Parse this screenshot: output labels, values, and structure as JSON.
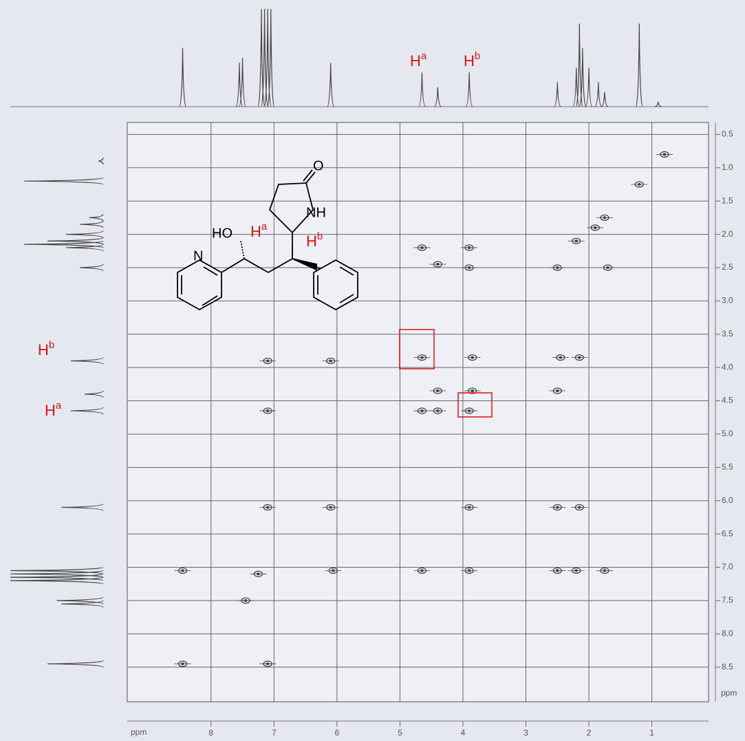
{
  "chart_data": {
    "type": "cosy",
    "x_axis_label": "ppm",
    "y_axis_label": "ppm",
    "xlim": [
      9.33,
      0.1
    ],
    "ylim": [
      0.32,
      9.02
    ],
    "xticks": [
      8,
      7,
      6,
      5,
      4,
      3,
      2,
      1
    ],
    "yticks": [
      0.5,
      {
        "value": 1,
        "label": "1.0"
      },
      1.5,
      {
        "value": 2,
        "label": "2.0"
      },
      2.5,
      {
        "value": 3,
        "label": "3.0"
      },
      3.5,
      {
        "value": 4,
        "label": "4.0"
      },
      4.5,
      {
        "value": 5,
        "label": "5.0"
      },
      5.5,
      {
        "value": 6,
        "label": "6.0"
      },
      6.5,
      {
        "value": 7,
        "label": "7.0"
      },
      7.5,
      {
        "value": 8,
        "label": "8.0"
      },
      8.5
    ],
    "grid": true,
    "color": "#444444",
    "x": [
      8.45,
      7.45,
      7.25,
      6.1,
      4.65,
      4.4,
      3.85,
      2.5,
      2.2,
      1.9,
      1.75,
      1.2,
      0.8,
      4.4,
      4.65,
      3.9,
      3.9,
      4.65,
      3.9,
      3.85,
      4.4,
      2.5,
      2.45,
      2.15,
      1.7,
      7.1,
      7.1,
      7.1,
      6.06,
      4.65,
      3.9,
      2.5,
      2.2,
      1.75,
      8.45,
      7.1,
      3.9,
      2.5,
      2.15,
      6.1
    ],
    "values": [
      8.45,
      7.5,
      7.1,
      6.1,
      4.65,
      4.35,
      3.85,
      2.5,
      2.1,
      1.9,
      1.75,
      1.25,
      0.8,
      2.45,
      2.2,
      2.2,
      2.5,
      3.85,
      4.65,
      4.35,
      4.65,
      4.35,
      3.85,
      3.85,
      2.5,
      4.65,
      3.9,
      6.1,
      7.05,
      7.05,
      7.05,
      7.05,
      7.05,
      7.05,
      7.05,
      8.45,
      6.1,
      6.1,
      6.1,
      3.9
    ],
    "projection": {
      "x": [
        8.45,
        7.55,
        7.5,
        7.2,
        7.15,
        7.1,
        7.05,
        6.1,
        4.65,
        4.4,
        3.9,
        2.5,
        2.2,
        2.15,
        2.1,
        2.0,
        1.85,
        1.75,
        1.2,
        0.9
      ],
      "values": [
        60,
        45,
        50,
        100,
        100,
        100,
        100,
        45,
        35,
        20,
        35,
        25,
        40,
        85,
        60,
        40,
        25,
        15,
        85,
        5
      ]
    },
    "annotations": [
      {
        "text": "H",
        "sup": "a"
      },
      {
        "text": "H",
        "sup": "b"
      },
      {
        "text": "H",
        "sup": "b"
      },
      {
        "text": "H",
        "sup": "a"
      }
    ],
    "structure_labels": {
      "oxygen": "O",
      "amide": "NH",
      "hydroxyl": "HO",
      "nitrogen": "N",
      "ha": {
        "text": "H",
        "sup": "a"
      },
      "hb": {
        "text": "H",
        "sup": "b"
      }
    }
  }
}
